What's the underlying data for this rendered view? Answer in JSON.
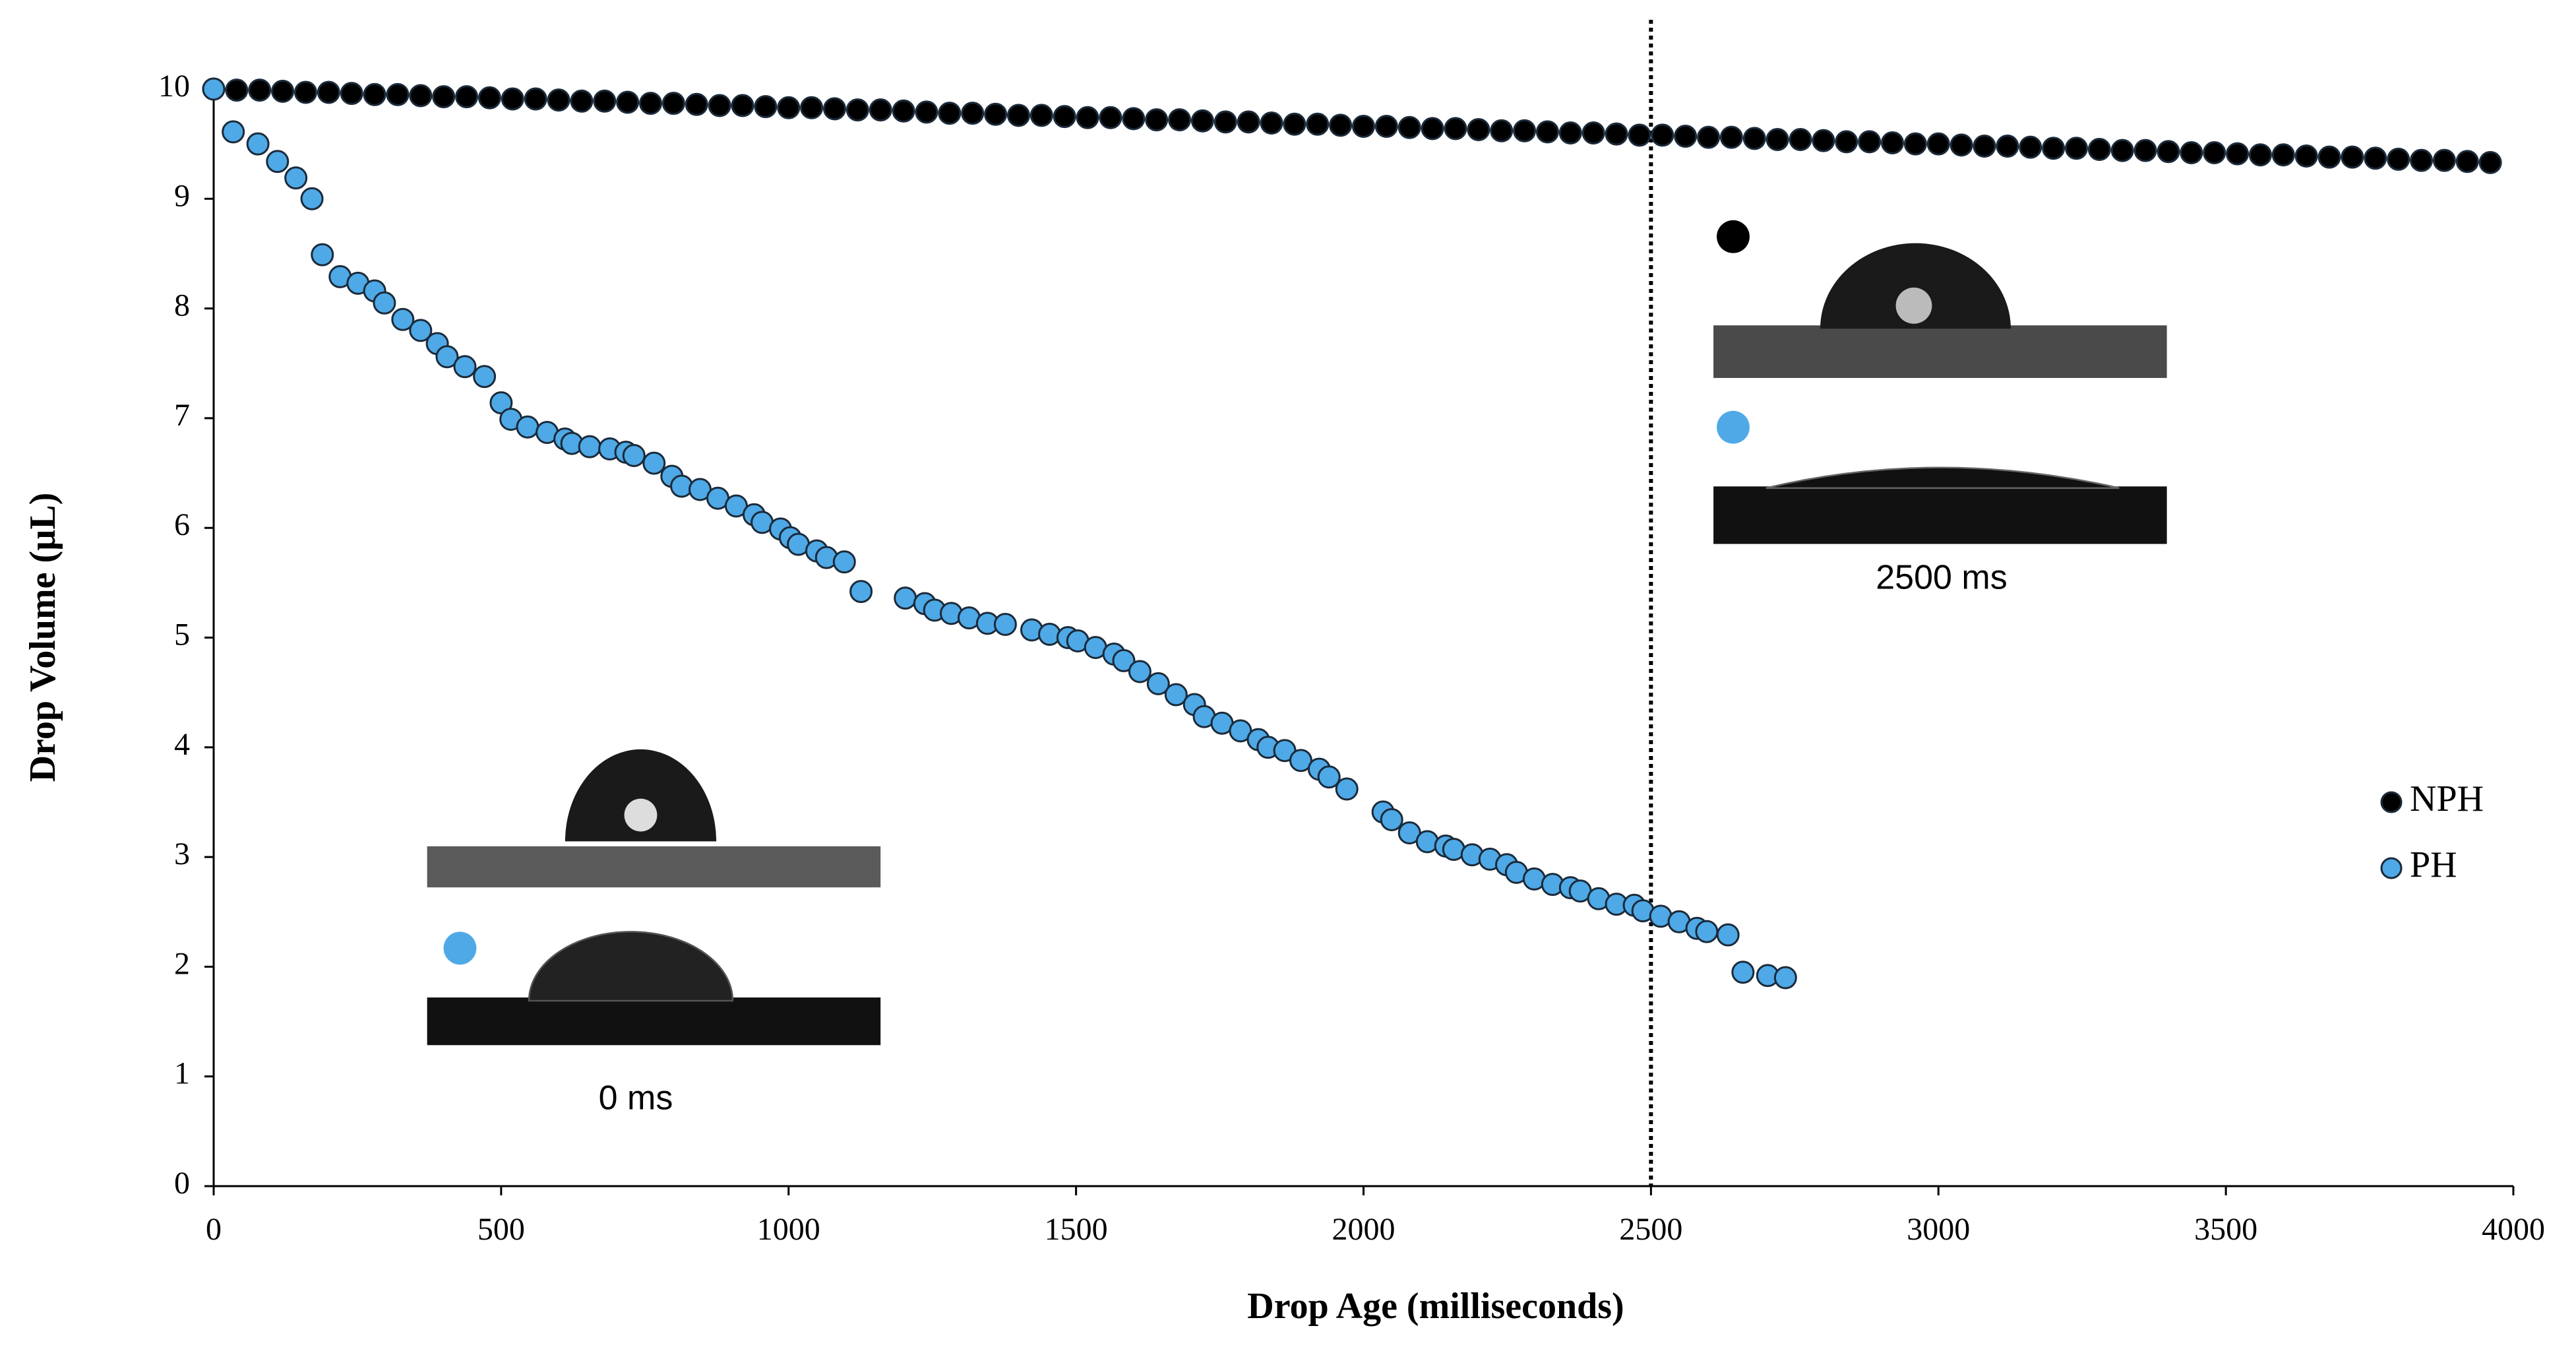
{
  "chart_data": {
    "type": "scatter",
    "xlabel": "Drop Age (milliseconds)",
    "ylabel": "Drop Volume (µL)",
    "xlim": [
      0,
      4000
    ],
    "xticks": [
      0,
      500,
      1000,
      1500,
      2000,
      2500,
      3000,
      3500,
      4000
    ],
    "ylim": [
      0,
      10
    ],
    "yticks": [
      0,
      1,
      2,
      3,
      4,
      5,
      6,
      7,
      8,
      9,
      10
    ],
    "vline": 2500,
    "annotations": [
      "0 ms",
      "2500 ms"
    ],
    "legend": "right",
    "series": [
      {
        "name": "NPH",
        "color": "#000000",
        "x": [
          0,
          40,
          80,
          120,
          160,
          200,
          240,
          280,
          320,
          360,
          400,
          440,
          480,
          520,
          560,
          600,
          640,
          680,
          720,
          760,
          800,
          840,
          880,
          920,
          960,
          1000,
          1040,
          1080,
          1120,
          1160,
          1200,
          1240,
          1280,
          1320,
          1360,
          1400,
          1440,
          1480,
          1520,
          1560,
          1600,
          1640,
          1680,
          1720,
          1760,
          1800,
          1840,
          1880,
          1920,
          1960,
          2000,
          2040,
          2080,
          2120,
          2160,
          2200,
          2240,
          2280,
          2320,
          2360,
          2400,
          2440,
          2480,
          2520,
          2560,
          2600,
          2640,
          2680,
          2720,
          2760,
          2800,
          2840,
          2880,
          2920,
          2960,
          3000,
          3040,
          3080,
          3120,
          3160,
          3200,
          3240,
          3280,
          3320,
          3360,
          3400,
          3440,
          3480,
          3520,
          3560,
          3600,
          3640,
          3680,
          3720,
          3760,
          3800,
          3840,
          3880,
          3920,
          3960
        ],
        "values": [
          10.0,
          9.99,
          9.99,
          9.98,
          9.97,
          9.97,
          9.96,
          9.95,
          9.95,
          9.94,
          9.93,
          9.93,
          9.92,
          9.91,
          9.91,
          9.9,
          9.89,
          9.89,
          9.88,
          9.87,
          9.87,
          9.86,
          9.85,
          9.85,
          9.84,
          9.83,
          9.83,
          9.82,
          9.81,
          9.81,
          9.8,
          9.79,
          9.78,
          9.78,
          9.77,
          9.76,
          9.76,
          9.75,
          9.74,
          9.74,
          9.73,
          9.72,
          9.72,
          9.71,
          9.7,
          9.7,
          9.69,
          9.68,
          9.68,
          9.67,
          9.66,
          9.66,
          9.65,
          9.64,
          9.64,
          9.63,
          9.62,
          9.62,
          9.61,
          9.6,
          9.6,
          9.59,
          9.58,
          9.58,
          9.57,
          9.56,
          9.56,
          9.55,
          9.54,
          9.54,
          9.53,
          9.52,
          9.52,
          9.51,
          9.5,
          9.5,
          9.49,
          9.48,
          9.48,
          9.47,
          9.46,
          9.46,
          9.45,
          9.44,
          9.44,
          9.43,
          9.42,
          9.42,
          9.41,
          9.4,
          9.4,
          9.39,
          9.38,
          9.38,
          9.37,
          9.36,
          9.35,
          9.35,
          9.34,
          9.33
        ]
      },
      {
        "name": "PH",
        "color": "#4ea9e6",
        "x": [
          0,
          34,
          77,
          111,
          143,
          171,
          189,
          220,
          251,
          280,
          297,
          329,
          360,
          389,
          406,
          437,
          471,
          500,
          517,
          546,
          580,
          611,
          623,
          654,
          689,
          717,
          731,
          766,
          797,
          814,
          846,
          877,
          909,
          940,
          954,
          986,
          1003,
          1017,
          1049,
          1066,
          1097,
          1126,
          1203,
          1237,
          1254,
          1283,
          1314,
          1346,
          1377,
          1423,
          1454,
          1486,
          1503,
          1534,
          1566,
          1583,
          1611,
          1643,
          1674,
          1706,
          1723,
          1754,
          1786,
          1817,
          1834,
          1863,
          1891,
          1923,
          1940,
          1971,
          2034,
          2049,
          2080,
          2111,
          2143,
          2157,
          2189,
          2220,
          2249,
          2266,
          2297,
          2329,
          2360,
          2377,
          2409,
          2440,
          2471,
          2486,
          2517,
          2549,
          2580,
          2597,
          2634,
          2660,
          2703,
          2734
        ],
        "values": [
          10,
          9.61,
          9.5,
          9.34,
          9.19,
          9.0,
          8.49,
          8.29,
          8.23,
          8.16,
          8.05,
          7.9,
          7.8,
          7.68,
          7.56,
          7.47,
          7.38,
          7.14,
          6.99,
          6.92,
          6.87,
          6.81,
          6.77,
          6.74,
          6.72,
          6.69,
          6.66,
          6.59,
          6.47,
          6.38,
          6.35,
          6.27,
          6.2,
          6.12,
          6.05,
          5.99,
          5.91,
          5.85,
          5.79,
          5.73,
          5.69,
          5.42,
          5.36,
          5.31,
          5.25,
          5.22,
          5.18,
          5.13,
          5.12,
          5.07,
          5.03,
          5.0,
          4.97,
          4.91,
          4.85,
          4.79,
          4.69,
          4.58,
          4.48,
          4.39,
          4.28,
          4.22,
          4.15,
          4.07,
          4.0,
          3.97,
          3.88,
          3.8,
          3.73,
          3.62,
          3.41,
          3.34,
          3.22,
          3.14,
          3.1,
          3.07,
          3.02,
          2.98,
          2.93,
          2.86,
          2.8,
          2.75,
          2.72,
          2.69,
          2.62,
          2.57,
          2.56,
          2.51,
          2.46,
          2.41,
          2.35,
          2.32,
          2.29,
          1.95,
          1.92,
          1.9
        ]
      }
    ]
  }
}
